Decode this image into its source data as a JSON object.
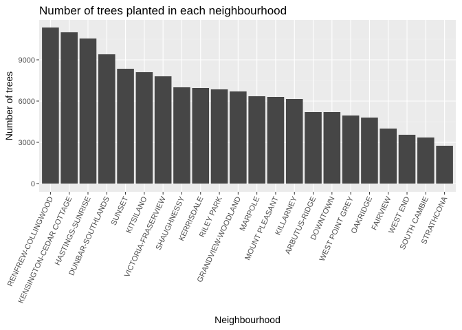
{
  "chart_data": {
    "type": "bar",
    "title": "Number of trees planted in each neighbourhood",
    "xlabel": "Neighbourhood",
    "ylabel": "Number of trees",
    "ylim": [
      -600,
      11900
    ],
    "yticks": [
      0,
      3000,
      6000,
      9000
    ],
    "ytick_labels": [
      "0",
      "3000",
      "6000",
      "9000"
    ],
    "grid": true,
    "categories": [
      "RENFREW-COLLINGWOOD",
      "KENSINGTON-CEDAR COTTAGE",
      "HASTINGS-SUNRISE",
      "DUNBAR-SOUTHLANDS",
      "SUNSET",
      "KITSILANO",
      "VICTORIA-FRASERVIEW",
      "SHAUGHNESSY",
      "KERRISDALE",
      "RILEY PARK",
      "GRANDVIEW-WOODLAND",
      "MARPOLE",
      "MOUNT PLEASANT",
      "KILLARNEY",
      "ARBUTUS-RIDGE",
      "DOWNTOWN",
      "WEST POINT GREY",
      "OAKRIDGE",
      "FAIRVIEW",
      "WEST END",
      "SOUTH CAMBIE",
      "STRATHCONA"
    ],
    "values": [
      11350,
      11000,
      10550,
      9400,
      8350,
      8100,
      7800,
      7000,
      6950,
      6850,
      6700,
      6350,
      6300,
      6150,
      5200,
      5200,
      4950,
      4800,
      4000,
      3550,
      3350,
      2750
    ]
  },
  "colors": {
    "panel_background": "#ebebeb",
    "grid_major": "#ffffff",
    "grid_minor": "#f4f4f4",
    "bar_fill": "#464646",
    "axis_text": "#4d4d4d",
    "title_text": "#000000"
  }
}
